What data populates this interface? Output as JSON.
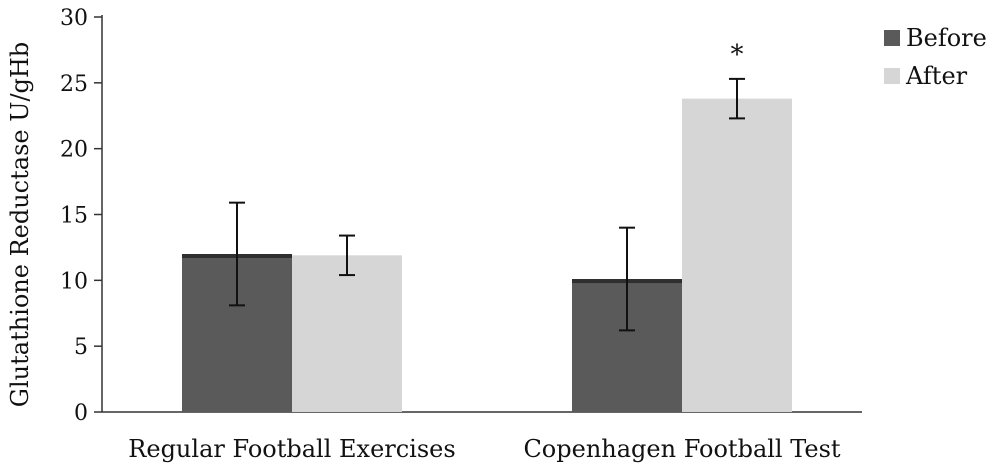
{
  "chart_data": {
    "type": "bar",
    "ylabel": "Glutathione Reductase U/gHb",
    "ylim": [
      0,
      30
    ],
    "yticks": [
      0,
      5,
      10,
      15,
      20,
      25,
      30
    ],
    "categories": [
      "Regular Football Exercises",
      "Copenhagen Football Test"
    ],
    "series": [
      {
        "name": "Before",
        "color": "#5a5a5a",
        "values": [
          12.0,
          10.1
        ],
        "error": [
          3.9,
          3.9
        ]
      },
      {
        "name": "After",
        "color": "#d6d6d6",
        "values": [
          11.9,
          23.8
        ],
        "error": [
          1.5,
          1.5
        ]
      }
    ],
    "annotations": [
      {
        "category": 1,
        "series": 1,
        "text": "*"
      }
    ],
    "legend": "top-right",
    "grid": false
  }
}
